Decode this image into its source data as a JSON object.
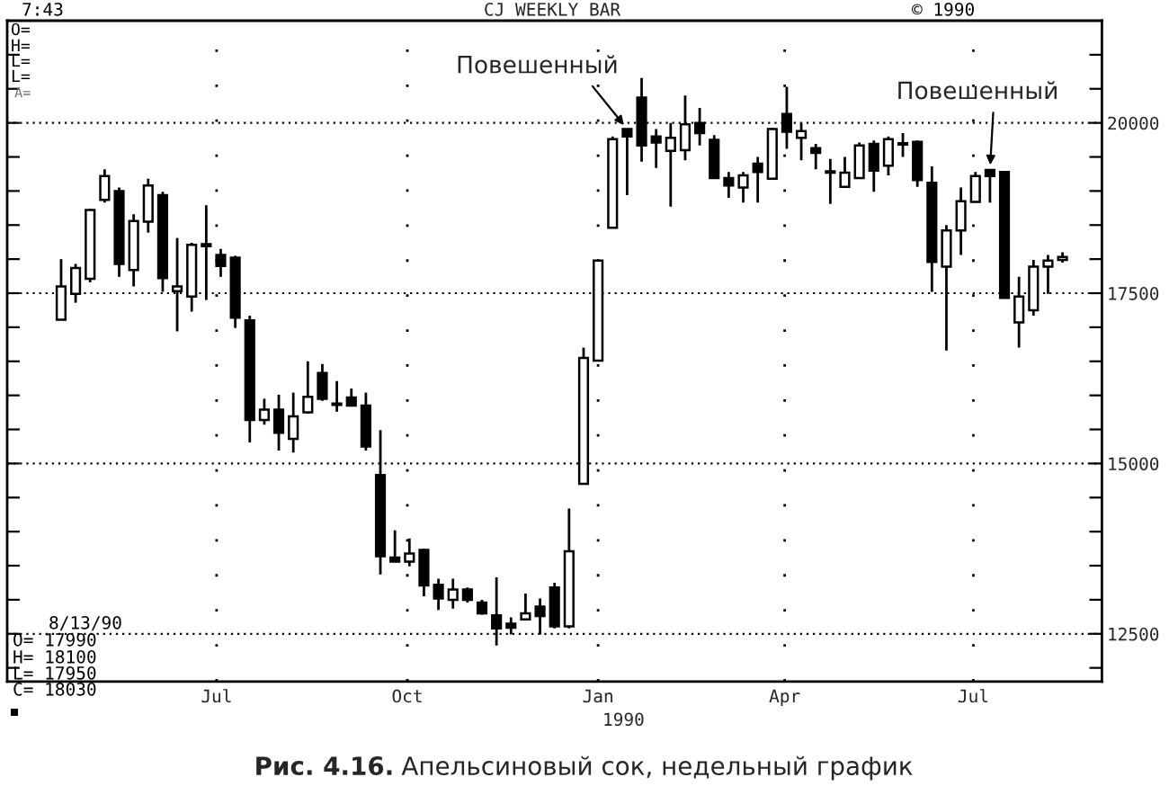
{
  "chart_data": {
    "type": "candlestick",
    "title": "CJ WEEKLY BAR",
    "xlabel": "1990",
    "x": [
      "1989-04-17",
      "1989-04-24",
      "1989-05-01",
      "1989-05-08",
      "1989-05-15",
      "1989-05-22",
      "1989-05-29",
      "1989-06-05",
      "1989-06-12",
      "1989-06-19",
      "1989-06-26",
      "1989-07-03",
      "1989-07-10",
      "1989-07-17",
      "1989-07-24",
      "1989-07-31",
      "1989-08-07",
      "1989-08-14",
      "1989-08-21",
      "1989-08-28",
      "1989-09-04",
      "1989-09-11",
      "1989-09-18",
      "1989-09-25",
      "1989-10-02",
      "1989-10-09",
      "1989-10-16",
      "1989-10-23",
      "1989-10-30",
      "1989-11-06",
      "1989-11-13",
      "1989-11-20",
      "1989-11-27",
      "1989-12-04",
      "1989-12-11",
      "1989-12-18",
      "1989-12-25",
      "1990-01-01",
      "1990-01-08",
      "1990-01-15",
      "1990-01-22",
      "1990-01-29",
      "1990-02-05",
      "1990-02-12",
      "1990-02-19",
      "1990-02-26",
      "1990-03-05",
      "1990-03-12",
      "1990-03-19",
      "1990-03-26",
      "1990-04-02",
      "1990-04-09",
      "1990-04-16",
      "1990-04-23",
      "1990-04-30",
      "1990-05-07",
      "1990-05-14",
      "1990-05-21",
      "1990-05-28",
      "1990-06-04",
      "1990-06-11",
      "1990-06-18",
      "1990-06-25",
      "1990-07-02",
      "1990-07-09",
      "1990-07-16",
      "1990-07-23",
      "1990-07-30",
      "1990-08-06",
      "1990-08-13"
    ],
    "ohlc": [
      [
        17110,
        18000,
        17110,
        17600
      ],
      [
        17490,
        17930,
        17360,
        17870
      ],
      [
        17710,
        18740,
        17660,
        18720
      ],
      [
        18870,
        19320,
        18830,
        19220
      ],
      [
        19000,
        19050,
        17740,
        17930
      ],
      [
        17840,
        18660,
        17600,
        18560
      ],
      [
        18550,
        19180,
        18390,
        19080
      ],
      [
        18940,
        18990,
        17520,
        17720
      ],
      [
        17530,
        18310,
        16940,
        17600
      ],
      [
        17450,
        18240,
        17230,
        18210
      ],
      [
        18220,
        18790,
        17400,
        18190
      ],
      [
        18060,
        18150,
        17740,
        17900
      ],
      [
        18020,
        18050,
        16990,
        17140
      ],
      [
        17100,
        17170,
        15310,
        15640
      ],
      [
        15640,
        15950,
        15570,
        15790
      ],
      [
        15790,
        16010,
        15190,
        15450
      ],
      [
        15360,
        16040,
        15160,
        15690
      ],
      [
        15750,
        16500,
        15730,
        15980
      ],
      [
        16330,
        16460,
        15920,
        15950
      ],
      [
        15880,
        16210,
        15760,
        15860
      ],
      [
        15970,
        16100,
        15840,
        15850
      ],
      [
        15850,
        16040,
        15190,
        15250
      ],
      [
        14830,
        15490,
        13370,
        13640
      ],
      [
        13620,
        14020,
        13560,
        13560
      ],
      [
        13560,
        13900,
        13490,
        13680
      ],
      [
        13730,
        13750,
        13050,
        13210
      ],
      [
        13220,
        13310,
        12850,
        13020
      ],
      [
        13000,
        13310,
        12870,
        13150
      ],
      [
        13150,
        13180,
        12960,
        13000
      ],
      [
        12960,
        13000,
        12780,
        12800
      ],
      [
        12770,
        13330,
        12330,
        12580
      ],
      [
        12650,
        12740,
        12490,
        12590
      ],
      [
        12710,
        13090,
        12700,
        12800
      ],
      [
        12900,
        13020,
        12490,
        12760
      ],
      [
        13180,
        13250,
        12580,
        12610
      ],
      [
        12610,
        14340,
        12580,
        13710
      ],
      [
        14700,
        16700,
        14700,
        16550
      ],
      [
        16510,
        17990,
        16510,
        17980
      ],
      [
        18460,
        19800,
        18460,
        19760
      ],
      [
        19910,
        19910,
        18940,
        19800
      ],
      [
        20370,
        20660,
        19430,
        19670
      ],
      [
        19800,
        19910,
        19340,
        19710
      ],
      [
        19590,
        20000,
        18770,
        19780
      ],
      [
        19600,
        20400,
        19450,
        19980
      ],
      [
        20000,
        20220,
        19670,
        19850
      ],
      [
        19750,
        19820,
        19190,
        19190
      ],
      [
        19190,
        19280,
        18900,
        19080
      ],
      [
        19050,
        19280,
        18830,
        19230
      ],
      [
        19400,
        19500,
        18830,
        19280
      ],
      [
        19180,
        19930,
        19180,
        19910
      ],
      [
        20130,
        20530,
        19620,
        19870
      ],
      [
        19780,
        20000,
        19450,
        19880
      ],
      [
        19630,
        19690,
        19320,
        19560
      ],
      [
        19290,
        19470,
        18810,
        19270
      ],
      [
        19060,
        19500,
        19060,
        19270
      ],
      [
        19190,
        19710,
        19190,
        19670
      ],
      [
        19690,
        19740,
        18990,
        19300
      ],
      [
        19370,
        19800,
        19230,
        19760
      ],
      [
        19700,
        19850,
        19500,
        19680
      ],
      [
        19720,
        19740,
        19060,
        19160
      ],
      [
        19120,
        19360,
        17520,
        17960
      ],
      [
        17890,
        18500,
        16660,
        18420
      ],
      [
        18420,
        19050,
        18060,
        18850
      ],
      [
        18840,
        19280,
        18830,
        19220
      ],
      [
        19310,
        19310,
        18830,
        19220
      ],
      [
        19280,
        19280,
        17430,
        17430
      ],
      [
        17070,
        17740,
        16700,
        17450
      ],
      [
        17250,
        17990,
        17170,
        17890
      ],
      [
        17890,
        18060,
        17490,
        17980
      ],
      [
        17990,
        18100,
        17950,
        18030
      ]
    ],
    "xlim": [
      "1989-03-22",
      "1990-09-01"
    ],
    "xticks": [
      {
        "value": "1989-07-01",
        "label": "Jul"
      },
      {
        "value": "1989-10-01",
        "label": "Oct"
      },
      {
        "value": "1990-01-01",
        "label": "Jan"
      },
      {
        "value": "1990-04-01",
        "label": "Apr"
      },
      {
        "value": "1990-07-01",
        "label": "Jul"
      }
    ],
    "ylim": [
      11800,
      21500
    ],
    "yticks": [
      {
        "value": 12000,
        "label": null
      },
      12500,
      {
        "value": 13000,
        "label": null
      },
      {
        "value": 13500,
        "label": null
      },
      {
        "value": 14000,
        "label": null
      },
      {
        "value": 14500,
        "label": null
      },
      15000,
      {
        "value": 15500,
        "label": null
      },
      {
        "value": 16000,
        "label": null
      },
      {
        "value": 16500,
        "label": null
      },
      {
        "value": 17000,
        "label": null
      },
      17500,
      {
        "value": 18000,
        "label": null
      },
      {
        "value": 18500,
        "label": null
      },
      {
        "value": 19000,
        "label": null
      },
      {
        "value": 19500,
        "label": null
      },
      20000,
      {
        "value": 20500,
        "label": null
      },
      {
        "value": 21000,
        "label": null
      }
    ],
    "grid": true,
    "annotations": [
      "7:43",
      "© 1990",
      "O=",
      "H=",
      "L=",
      "L=",
      "A=",
      "8/13/90",
      "O= 17990",
      "H= 18100",
      "L= 17950",
      "C= 18030",
      {
        "text": "Повешенный",
        "x": "1990-01-15",
        "y": 19910
      },
      {
        "text": "Повешенный",
        "x": "1990-07-09",
        "y": 19310
      },
      "Рис. 4.16.",
      "Апельсиновый сок, недельный график"
    ]
  }
}
